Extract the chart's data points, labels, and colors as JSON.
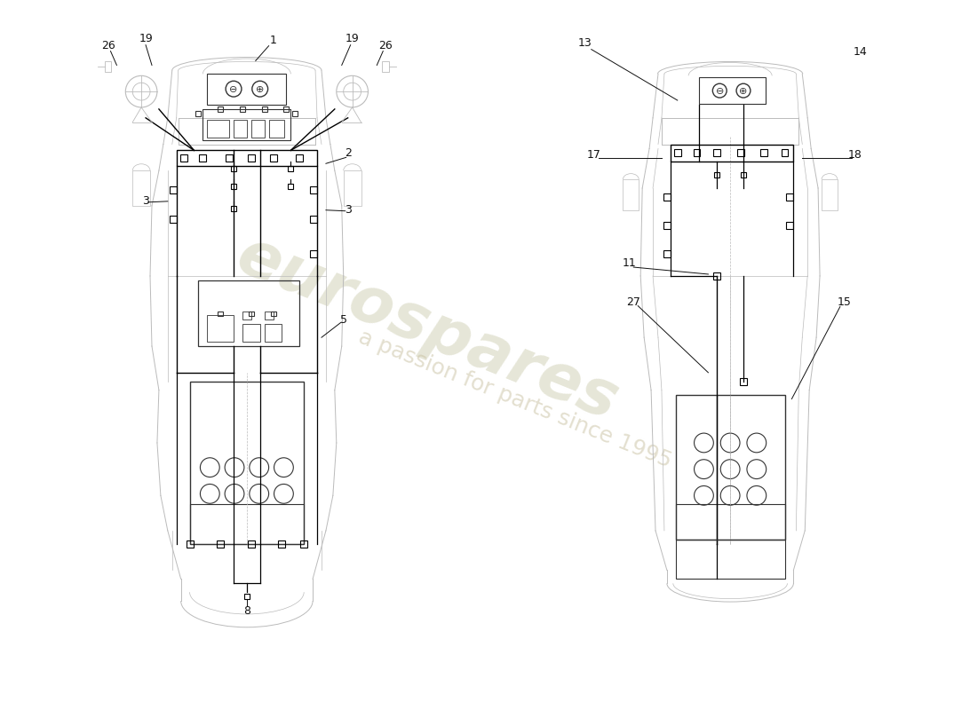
{
  "bg_color": "#ffffff",
  "car_color": "#bbbbbb",
  "wiring_color": "#000000",
  "label_color": "#111111",
  "label_fontsize": 9,
  "watermark_color_1": "#c8c8a0",
  "watermark_color_2": "#d0d090"
}
